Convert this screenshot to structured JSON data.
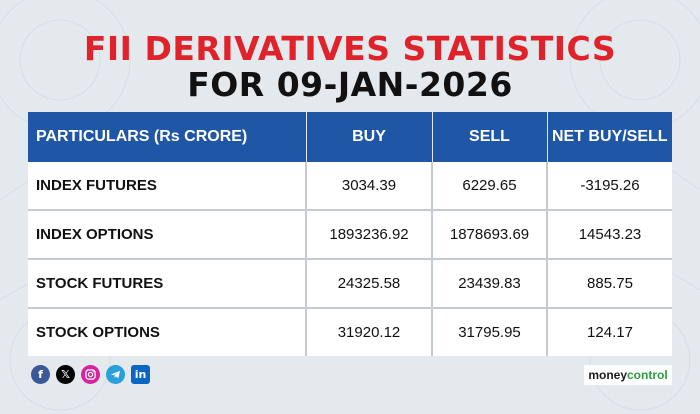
{
  "title": {
    "line1": "FII DERIVATIVES STATISTICS",
    "line2": "FOR 09-JAN-2026"
  },
  "table": {
    "headers": [
      "PARTICULARS (Rs CRORE)",
      "BUY",
      "SELL",
      "NET BUY/SELL"
    ],
    "rows": [
      [
        "INDEX FUTURES",
        "3034.39",
        "6229.65",
        "-3195.26"
      ],
      [
        "INDEX OPTIONS",
        "1893236.92",
        "1878693.69",
        "14543.23"
      ],
      [
        "STOCK FUTURES",
        "24325.58",
        "23439.83",
        "885.75"
      ],
      [
        "STOCK OPTIONS",
        "31920.12",
        "31795.95",
        "124.17"
      ]
    ]
  },
  "social_icons": [
    "facebook-icon",
    "x-icon",
    "instagram-icon",
    "telegram-icon",
    "linkedin-icon"
  ],
  "brand": {
    "logo_text_part1": "money",
    "logo_text_part2": "control",
    "colors": {
      "title_red": "#e0222a",
      "header_blue": "#1f57a6",
      "logo_green": "#2e9b3e"
    }
  }
}
